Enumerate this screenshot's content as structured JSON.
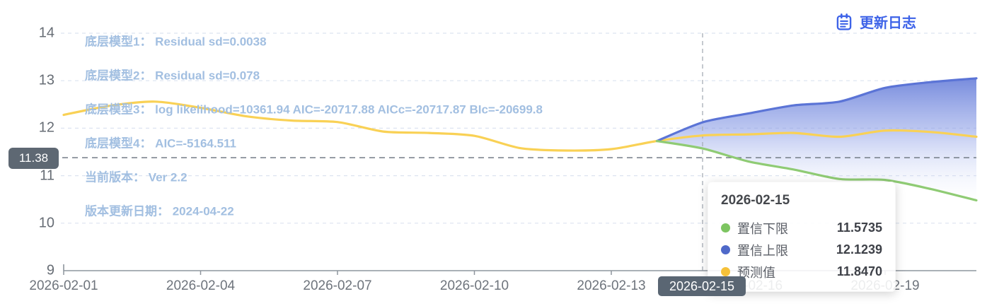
{
  "update_log": {
    "label": "更新日志"
  },
  "annotations": [
    "底层模型1： Residual sd=0.0038",
    "底层模型2： Residual sd=0.078",
    "底层模型3： log likelihood=10361.94 AIC=-20717.88 AICc=-20717.87 BIc=-20699.8",
    "底层模型4： AIC=-5164.511",
    "当前版本： Ver 2.2",
    "版本更新日期： 2024-04-22"
  ],
  "axis_pointer": {
    "y_label": "11.38",
    "y_value": 11.38,
    "x_label": "2026-02-15",
    "x_date": "2026-02-15"
  },
  "tooltip": {
    "title": "2026-02-15",
    "rows": [
      {
        "label": "置信下限",
        "value": "11.5735",
        "color": "#7DC561"
      },
      {
        "label": "置信上限",
        "value": "12.1239",
        "color": "#4F69C9"
      },
      {
        "label": "预测值",
        "value": "11.8470",
        "color": "#F6C139"
      }
    ]
  },
  "chart_data": {
    "type": "line",
    "x": [
      "2026-02-01",
      "2026-02-02",
      "2026-02-03",
      "2026-02-04",
      "2026-02-05",
      "2026-02-06",
      "2026-02-07",
      "2026-02-08",
      "2026-02-09",
      "2026-02-10",
      "2026-02-11",
      "2026-02-12",
      "2026-02-13",
      "2026-02-14",
      "2026-02-15",
      "2026-02-16",
      "2026-02-17",
      "2026-02-18",
      "2026-02-19",
      "2026-02-20",
      "2026-02-21"
    ],
    "x_tick_labels": [
      "2026-02-01",
      "2026-02-04",
      "2026-02-07",
      "2026-02-10",
      "2026-02-13",
      "2026-02-16",
      "2026-02-19"
    ],
    "y_ticks": [
      9,
      10,
      11,
      12,
      13,
      14
    ],
    "ylim": [
      9,
      14
    ],
    "grid": true,
    "legend_position": "none",
    "series": [
      {
        "name": "预测值",
        "color": "#F9D155",
        "values": [
          12.28,
          12.47,
          12.56,
          12.43,
          12.25,
          12.16,
          12.13,
          11.93,
          11.9,
          11.84,
          11.58,
          11.53,
          11.56,
          11.73,
          11.847,
          11.87,
          11.9,
          11.82,
          11.95,
          11.92,
          11.82
        ]
      },
      {
        "name": "置信上限",
        "color": "#5B74D6",
        "values": [
          null,
          null,
          null,
          null,
          null,
          null,
          null,
          null,
          null,
          null,
          null,
          null,
          null,
          11.73,
          12.1239,
          12.31,
          12.48,
          12.56,
          12.85,
          12.97,
          13.05
        ]
      },
      {
        "name": "置信下限",
        "color": "#8FCB74",
        "values": [
          null,
          null,
          null,
          null,
          null,
          null,
          null,
          null,
          null,
          null,
          null,
          null,
          null,
          11.73,
          11.5735,
          11.3,
          11.13,
          10.93,
          10.91,
          10.72,
          10.48
        ]
      }
    ],
    "band": {
      "upper": "置信上限",
      "lower": "置信下限",
      "fill_top": "rgba(108,130,218,0.92)",
      "fill_bottom": "rgba(235,240,252,0.04)"
    }
  },
  "colors": {
    "accent_link": "#3E63E8",
    "pointer_badge_bg": "#5A6673",
    "annotation_text": "#A2BFE1",
    "gridline": "#DCE3F0",
    "axis_line": "#8E959D"
  }
}
